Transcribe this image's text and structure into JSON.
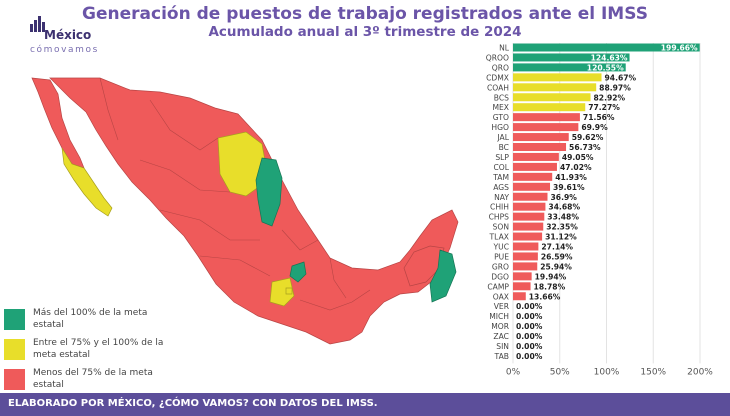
{
  "header": {
    "title": "Generación de puestos de trabajo registrados ante el IMSS",
    "subtitle": "Acumulado anual al 3º trimestre de 2024"
  },
  "logo": {
    "brand": "México",
    "tagline": "cómovamos"
  },
  "legend": [
    {
      "label": "Más del 100% de la meta estatal",
      "color": "#1fa277"
    },
    {
      "label": "Entre el 75% y el 100% de la meta estatal",
      "color": "#e8de2a"
    },
    {
      "label": "Menos del 75% de la meta estatal",
      "color": "#ef5a5a"
    }
  ],
  "footer": {
    "text": "ELABORADO POR MÉXICO, ¿CÓMO VAMOS? CON DATOS DEL IMSS."
  },
  "chart_data": {
    "type": "bar",
    "orientation": "horizontal",
    "categories": [
      "NL",
      "QROO",
      "QRO",
      "CDMX",
      "COAH",
      "BCS",
      "MEX",
      "GTO",
      "HGO",
      "JAL",
      "BC",
      "SLP",
      "COL",
      "TAM",
      "AGS",
      "NAY",
      "CHIH",
      "CHPS",
      "SON",
      "TLAX",
      "YUC",
      "PUE",
      "GRO",
      "DGO",
      "CAMP",
      "OAX",
      "VER",
      "MICH",
      "MOR",
      "ZAC",
      "SIN",
      "TAB"
    ],
    "values": [
      199.66,
      124.63,
      120.55,
      94.67,
      88.97,
      82.92,
      77.27,
      71.56,
      69.9,
      59.62,
      56.73,
      49.05,
      47.02,
      41.93,
      39.61,
      36.9,
      34.68,
      33.48,
      32.35,
      31.12,
      27.14,
      26.59,
      25.94,
      19.94,
      18.78,
      13.66,
      0,
      0,
      0,
      0,
      0,
      0
    ],
    "data_labels": [
      "199.66%",
      "124.63%",
      "120.55%",
      "94.67%",
      "88.97%",
      "82.92%",
      "77.27%",
      "71.56%",
      "69.9%",
      "59.62%",
      "56.73%",
      "49.05%",
      "47.02%",
      "41.93%",
      "39.61%",
      "36.9%",
      "34.68%",
      "33.48%",
      "32.35%",
      "31.12%",
      "27.14%",
      "26.59%",
      "25.94%",
      "19.94%",
      "18.78%",
      "13.66%",
      "0.00%",
      "0.00%",
      "0.00%",
      "0.00%",
      "0.00%",
      "0.00%"
    ],
    "xlim": [
      0,
      200
    ],
    "xticks": [
      "0%",
      "50%",
      "100%",
      "150%",
      "200%"
    ],
    "colors": {
      "above_100": "#1fa277",
      "between_75_100": "#e8de2a",
      "below_75": "#ef5a5a"
    },
    "grid": true
  }
}
